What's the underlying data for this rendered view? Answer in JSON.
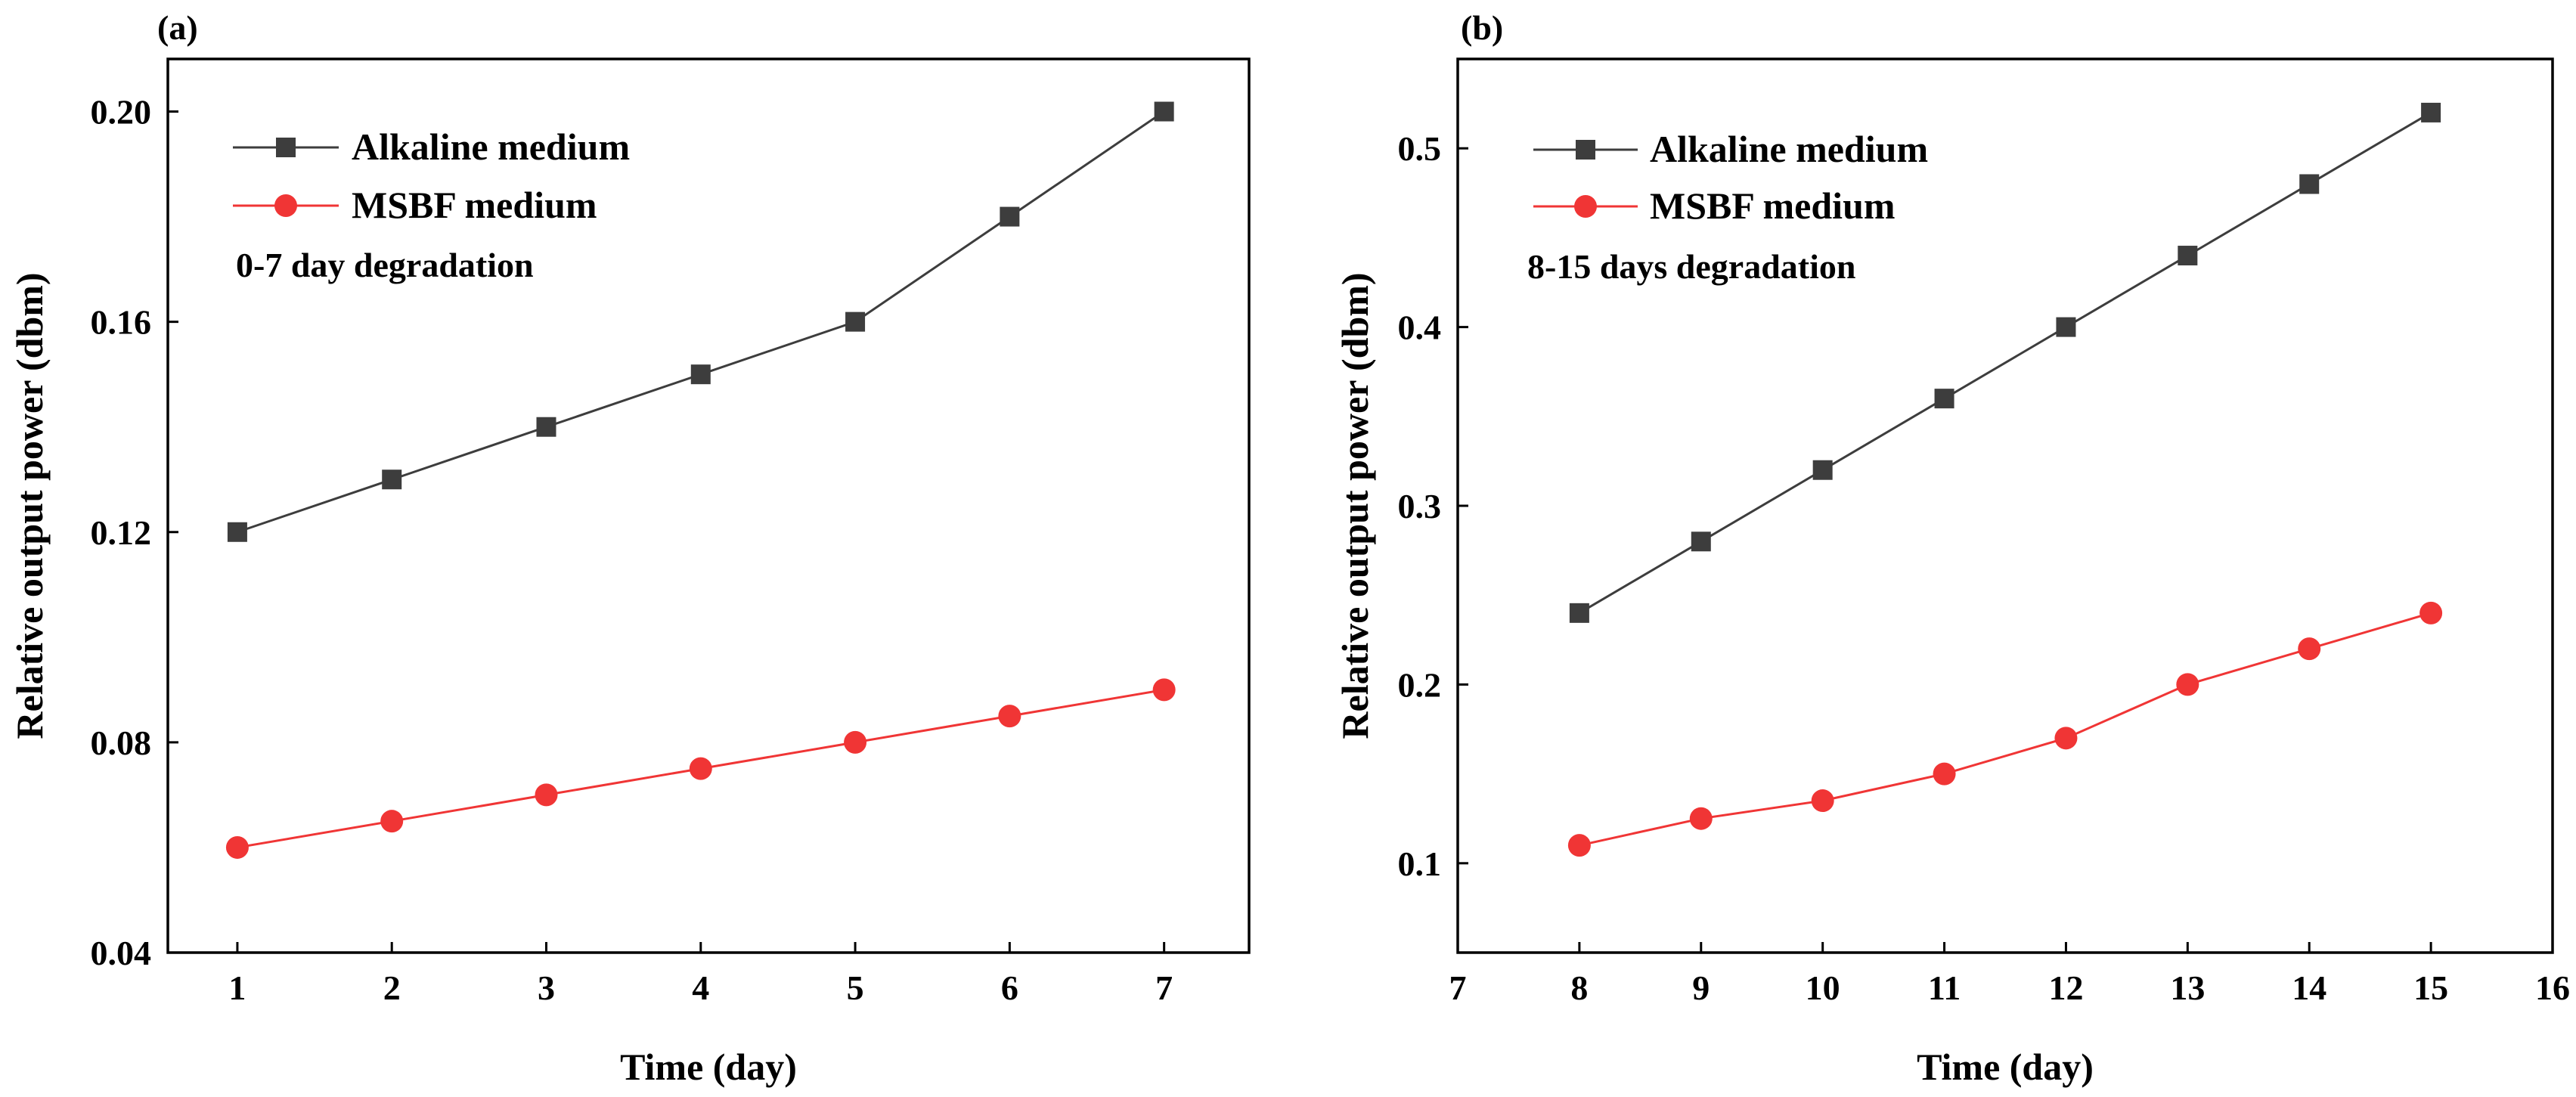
{
  "chart_data": [
    {
      "panel_label": "(a)",
      "type": "line",
      "xlabel": "Time (day)",
      "ylabel": "Relative output power (dbm)",
      "x": [
        1,
        2,
        3,
        4,
        5,
        6,
        7
      ],
      "xlim": [
        0.55,
        7.55
      ],
      "ylim": [
        0.04,
        0.21
      ],
      "xticks": [
        1,
        2,
        3,
        4,
        5,
        6,
        7
      ],
      "xtick_labels": [
        "1",
        "2",
        "3",
        "4",
        "5",
        "6",
        "7"
      ],
      "yticks": [
        0.04,
        0.08,
        0.12,
        0.16,
        0.2
      ],
      "ytick_labels": [
        "0.04",
        "0.08",
        "0.12",
        "0.16",
        "0.20"
      ],
      "legend_position": "top-left",
      "annotation": "0-7 day degradation",
      "series": [
        {
          "name": "Alkaline medium",
          "marker": "square",
          "color": "#3d3d3d",
          "values": [
            0.12,
            0.13,
            0.14,
            0.15,
            0.16,
            0.18,
            0.2
          ]
        },
        {
          "name": "MSBF medium",
          "marker": "circle",
          "color": "#f03535",
          "values": [
            0.06,
            0.065,
            0.07,
            0.075,
            0.08,
            0.085,
            0.09
          ]
        }
      ]
    },
    {
      "panel_label": "(b)",
      "type": "line",
      "xlabel": "Time (day)",
      "ylabel": "Relative output power (dbm)",
      "x": [
        8,
        9,
        10,
        11,
        12,
        13,
        14,
        15
      ],
      "xlim": [
        7,
        16
      ],
      "ylim": [
        0.05,
        0.55
      ],
      "xticks": [
        7,
        8,
        9,
        10,
        11,
        12,
        13,
        14,
        15,
        16
      ],
      "xtick_labels": [
        "7",
        "8",
        "9",
        "10",
        "11",
        "12",
        "13",
        "14",
        "15",
        "16"
      ],
      "yticks": [
        0.1,
        0.2,
        0.3,
        0.4,
        0.5
      ],
      "ytick_labels": [
        "0.1",
        "0.2",
        "0.3",
        "0.4",
        "0.5"
      ],
      "legend_position": "top-left",
      "annotation": "8-15 days degradation",
      "series": [
        {
          "name": "Alkaline medium",
          "marker": "square",
          "color": "#3d3d3d",
          "values": [
            0.24,
            0.28,
            0.32,
            0.36,
            0.4,
            0.44,
            0.48,
            0.52
          ]
        },
        {
          "name": "MSBF medium",
          "marker": "circle",
          "color": "#f03535",
          "values": [
            0.11,
            0.125,
            0.135,
            0.15,
            0.17,
            0.2,
            0.22,
            0.24
          ]
        }
      ]
    }
  ]
}
